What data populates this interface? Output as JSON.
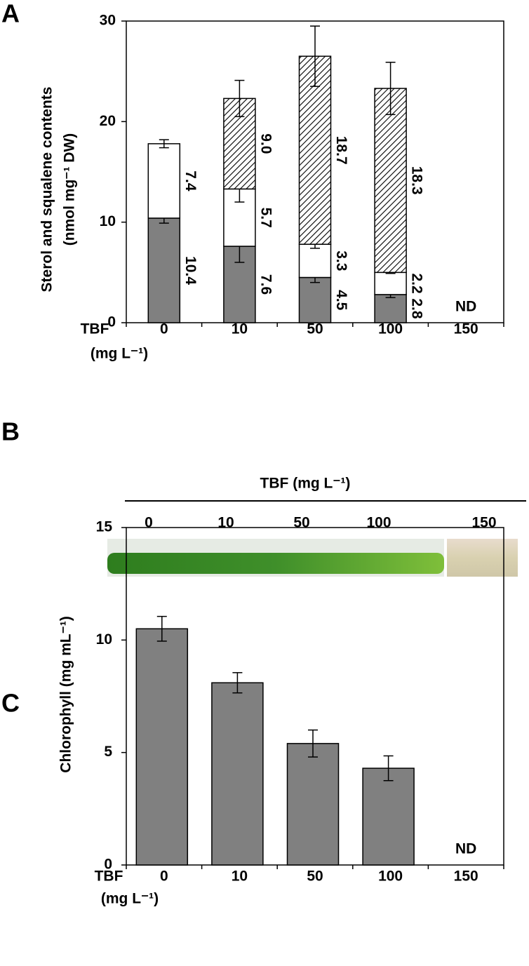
{
  "panel_labels": [
    "A",
    "B",
    "C"
  ],
  "chart_data": [
    {
      "type": "stacked_bar",
      "ylabel": [
        "Sterol and squalene contents",
        "(nmol mg⁻¹ DW)"
      ],
      "xlabel": "TBF",
      "xlabel_unit": "(mg L⁻¹)",
      "categories": [
        "0",
        "10",
        "50",
        "100",
        "150"
      ],
      "ylim": [
        0,
        30
      ],
      "yticks": [
        0,
        10,
        20,
        30
      ],
      "series": [
        {
          "color": "#808080",
          "values": [
            10.4,
            7.6,
            4.5,
            2.8,
            null
          ],
          "value_labels": [
            "10.4",
            "7.6",
            "4.5",
            "2.8",
            null
          ],
          "errors": [
            0.5,
            1.6,
            0.5,
            0.3,
            null
          ]
        },
        {
          "color": "#ffffff",
          "values": [
            7.4,
            5.7,
            3.3,
            2.2,
            null
          ],
          "value_labels": [
            "7.4",
            "5.7",
            "3.3",
            "2.2",
            null
          ],
          "errors": [
            0.4,
            1.3,
            0.4,
            0.1,
            null
          ]
        },
        {
          "color": "#ffffff",
          "pattern": "hatch",
          "values": [
            null,
            9.0,
            18.7,
            18.3,
            null
          ],
          "value_labels": [
            null,
            "9.0",
            "18.7",
            "18.3",
            null
          ],
          "errors": [
            null,
            1.8,
            3.0,
            2.6,
            null
          ]
        }
      ],
      "annotations": [
        {
          "text": "ND",
          "category": "150"
        }
      ]
    },
    {
      "type": "bar",
      "ylabel": [
        "Chlorophyll (mg mL⁻¹)"
      ],
      "xlabel": "TBF",
      "xlabel_unit": "(mg L⁻¹)",
      "categories": [
        "0",
        "10",
        "50",
        "100",
        "150"
      ],
      "ylim": [
        0,
        15
      ],
      "yticks": [
        0,
        5,
        10,
        15
      ],
      "color": "#808080",
      "values": [
        10.5,
        8.1,
        5.4,
        4.3,
        null
      ],
      "errors": [
        0.55,
        0.45,
        0.6,
        0.55,
        null
      ],
      "annotations": [
        {
          "text": "ND",
          "category": "150"
        }
      ]
    }
  ],
  "photo_panel": {
    "title": "TBF (mg L⁻¹)",
    "labels": [
      "0",
      "10",
      "50",
      "100",
      "150"
    ]
  }
}
